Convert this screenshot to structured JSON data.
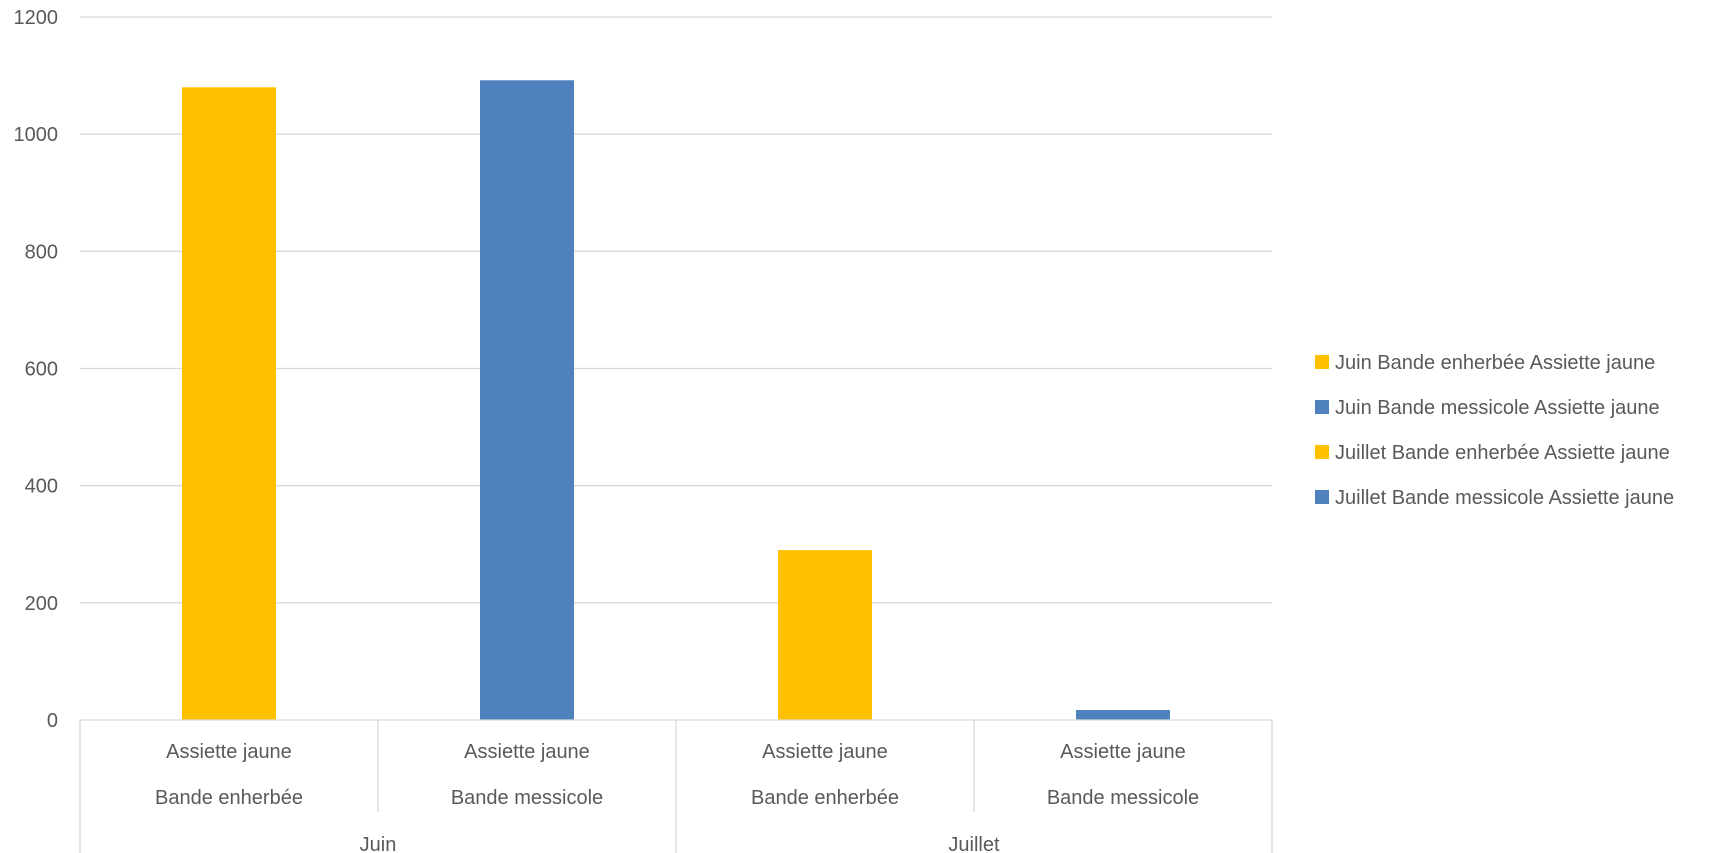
{
  "chart_data": {
    "type": "bar",
    "title": "",
    "xlabel": "",
    "ylabel": "",
    "ylim": [
      0,
      1200
    ],
    "y_ticks": [
      "0",
      "200",
      "400",
      "600",
      "800",
      "1000",
      "1200"
    ],
    "grid": true,
    "legend_position": "right",
    "categories": [
      {
        "level1": "Assiette jaune",
        "level2": "Bande enherbée",
        "level3": "Juin"
      },
      {
        "level1": "Assiette jaune",
        "level2": "Bande messicole",
        "level3": "Juin"
      },
      {
        "level1": "Assiette jaune",
        "level2": "Bande enherbée",
        "level3": "Juillet"
      },
      {
        "level1": "Assiette jaune",
        "level2": "Bande messicole",
        "level3": "Juillet"
      }
    ],
    "groups": [
      "Juin",
      "Juillet"
    ],
    "series": [
      {
        "name": "Juin Bande enherbée Assiette jaune",
        "color": "#FFC000",
        "values": [
          1080,
          null,
          null,
          null
        ]
      },
      {
        "name": "Juin Bande messicole Assiette jaune",
        "color": "#4F81BD",
        "values": [
          null,
          1092,
          null,
          null
        ]
      },
      {
        "name": "Juillet Bande enherbée Assiette jaune",
        "color": "#FFC000",
        "values": [
          null,
          null,
          290,
          null
        ]
      },
      {
        "name": "Juillet Bande messicole Assiette jaune",
        "color": "#4F81BD",
        "values": [
          null,
          null,
          null,
          17
        ]
      }
    ]
  }
}
